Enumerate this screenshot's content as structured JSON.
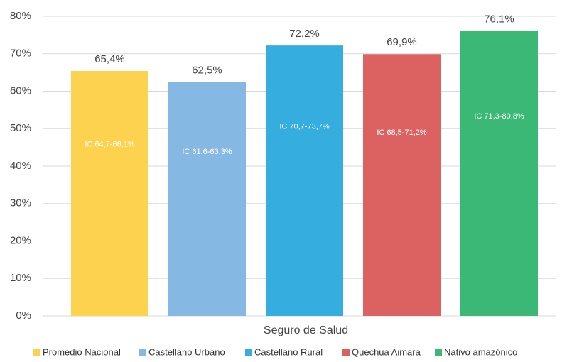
{
  "chart_data": {
    "type": "bar",
    "categories": [
      "Seguro de Salud"
    ],
    "series": [
      {
        "name": "Promedio Nacional",
        "color": "#fdd24e",
        "values": [
          65.4
        ],
        "value_labels": [
          "65,4%"
        ],
        "interval_labels": [
          "IC 64,7-66,1%"
        ]
      },
      {
        "name": "Castellano Urbano",
        "color": "#85b8e3",
        "values": [
          62.5
        ],
        "value_labels": [
          "62,5%"
        ],
        "interval_labels": [
          "IC 61,6-63,3%"
        ]
      },
      {
        "name": "Castellano Rural",
        "color": "#36addf",
        "values": [
          72.2
        ],
        "value_labels": [
          "72,2%"
        ],
        "interval_labels": [
          "IC 70,7-73,7%"
        ]
      },
      {
        "name": "Quechua Aimara",
        "color": "#dc6262",
        "values": [
          69.9
        ],
        "value_labels": [
          "69,9%"
        ],
        "interval_labels": [
          "IC 68,5-71,2%"
        ]
      },
      {
        "name": "Nativo amazónico",
        "color": "#3bb875",
        "values": [
          76.1
        ],
        "value_labels": [
          "76,1%"
        ],
        "interval_labels": [
          "IC 71,3-80,8%"
        ]
      }
    ],
    "ylim": [
      0,
      80
    ],
    "yticks": [
      {
        "value": 0,
        "label": "0%"
      },
      {
        "value": 10,
        "label": "10%"
      },
      {
        "value": 20,
        "label": "20%"
      },
      {
        "value": 30,
        "label": "30%"
      },
      {
        "value": 40,
        "label": "40%"
      },
      {
        "value": 50,
        "label": "50%"
      },
      {
        "value": 60,
        "label": "60%"
      },
      {
        "value": 70,
        "label": "70%"
      },
      {
        "value": 80,
        "label": "80%"
      }
    ],
    "grid": true,
    "legend": "bottom"
  }
}
